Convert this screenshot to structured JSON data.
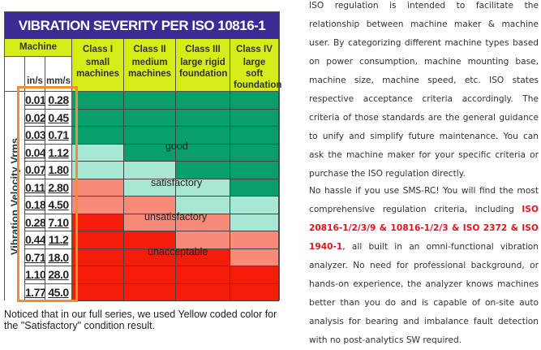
{
  "table": {
    "title": "VIBRATION SEVERITY PER ISO 10816-1",
    "machine_label": "Machine",
    "unit_headers": [
      "in/s",
      "mm/s"
    ],
    "axis_label": "Vibration Velocity Vrms",
    "classes": [
      {
        "name": "Class I",
        "desc": "small machines"
      },
      {
        "name": "Class II",
        "desc": "medium machines"
      },
      {
        "name": "Class III",
        "desc": "large rigid foundation"
      },
      {
        "name": "Class IV",
        "desc": "large soft foundation"
      }
    ],
    "rows": [
      [
        "0.01",
        "0.28"
      ],
      [
        "0.02",
        "0.45"
      ],
      [
        "0.03",
        "0.71"
      ],
      [
        "0.04",
        "1.12"
      ],
      [
        "0.07",
        "1.80"
      ],
      [
        "0.11",
        "2.80"
      ],
      [
        "0.18",
        "4.50"
      ],
      [
        "0.28",
        "7.10"
      ],
      [
        "0.44",
        "11.2"
      ],
      [
        "0.71",
        "18.0"
      ],
      [
        "1.10",
        "28.0"
      ],
      [
        "1.77",
        "45.0"
      ]
    ],
    "zone_thresholds_row_index": {
      "class_I": [
        3,
        5,
        7
      ],
      "class_II": [
        4,
        6,
        8
      ],
      "class_III": [
        5,
        7,
        9
      ],
      "class_IV": [
        6,
        8,
        10
      ]
    },
    "zones": [
      "good",
      "satisfactory",
      "unsatisfactory",
      "unacceptable"
    ],
    "colors": {
      "good": "#089f6b",
      "satisfactory": "#a8e6d6",
      "unsatisfactory": "#f78a78",
      "unacceptable": "#f61c0a",
      "title_bg": "#3b2c93",
      "header_bg": "#d6ec18",
      "highlight_box": "#f0902a"
    }
  },
  "note": "Noticed that in our full series, we used Yellow coded color for the \"Satisfactory\" condition result.",
  "paragraph1": "ISO regulation is intended to facilitate the relationship between machine maker & machine user. By categorizing different machine types based on power consumption, machine mounting base, machine size, machine speed, etc. ISO states respective acceptance criteria accordingly. The criteria of those standards are the general guidance to unify and simplify future maintenance. You can ask the machine maker for your specific criteria or purchase the ISO regulation directly.",
  "paragraph2": {
    "before": "No hassle if you use SMS-RC! You will find the most comprehensive regulation criteria, including ",
    "highlight": "ISO 20816-1/2/3/9 & 10816-1/2/3 & ISO 2372 & ISO 1940-1",
    "after": ", all built in an omni-functional vibration analyzer. No need for professional background, or hands-on experience, the analyzer knows machines better than you do and is capable of on-site auto analysis for bearing and imbalance fault detection with no post-analytics SW required."
  }
}
